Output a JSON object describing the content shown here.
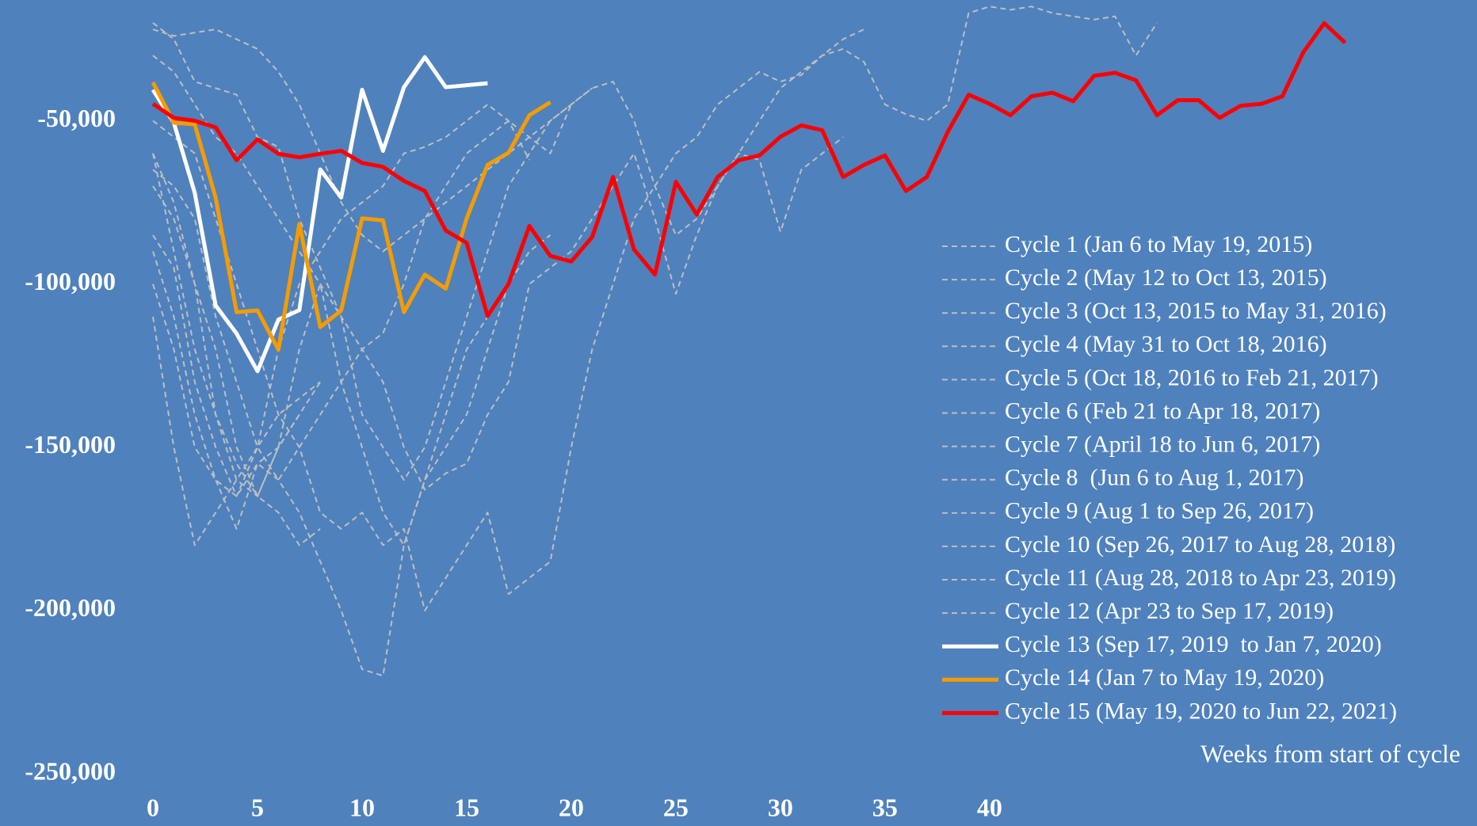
{
  "chart_data": {
    "type": "line",
    "x_label": "Weeks from start of cycle",
    "xlim": [
      0,
      63
    ],
    "xticks": [
      0,
      5,
      10,
      15,
      20,
      25,
      30,
      35,
      40
    ],
    "ylim": [
      -250000,
      -13000
    ],
    "yticks": [
      {
        "value": -50000,
        "label": "-50,000"
      },
      {
        "value": -100000,
        "label": "-100,000"
      },
      {
        "value": -150000,
        "label": "-150,000"
      },
      {
        "value": -200000,
        "label": "-200,000"
      },
      {
        "value": -250000,
        "label": "-250,000"
      }
    ],
    "grid": false,
    "legend": "right",
    "series": [
      {
        "name": "Cycle 1 (Jan 6 to May 19, 2015)",
        "color": "#bfbfbf",
        "style": "dashed",
        "values": [
          -85000,
          -95000,
          -130000,
          -150000,
          -165000,
          -150000,
          -120000,
          -100000,
          -90000,
          -80000,
          -75000,
          -70000,
          -60000,
          -58000,
          -55000,
          -50000,
          -45000,
          -50000,
          -62000
        ]
      },
      {
        "name": "Cycle 2 (May 12 to Oct 13, 2015)",
        "color": "#bfbfbf",
        "style": "dashed",
        "values": [
          -20000,
          -25000,
          -38000,
          -40000,
          -42000,
          -55000,
          -58000,
          -80000,
          -95000,
          -110000,
          -140000,
          -150000,
          -160000,
          -150000,
          -130000,
          -110000,
          -90000,
          -70000,
          -60000,
          -50000,
          -45000,
          -40000
        ]
      },
      {
        "name": "Cycle 3 (Oct 13, 2015 to May 31, 2016)",
        "color": "#bfbfbf",
        "style": "dashed",
        "values": [
          -22000,
          -24000,
          -23000,
          -22000,
          -25000,
          -28000,
          -35000,
          -45000,
          -60000,
          -75000,
          -85000,
          -90000,
          -85000,
          -80000,
          -75000,
          -70000,
          -65000,
          -60000,
          -55000,
          -50000,
          -45000,
          -40000,
          -38000,
          -50000,
          -70000,
          -85000,
          -80000,
          -70000,
          -60000,
          -50000,
          -40000,
          -35000,
          -30000,
          -25000,
          -22000
        ]
      },
      {
        "name": "Cycle 4 (May 31 to Oct 18, 2016)",
        "color": "#bfbfbf",
        "style": "dashed",
        "values": [
          -60000,
          -75000,
          -100000,
          -140000,
          -160000,
          -165000,
          -150000,
          -120000,
          -100000,
          -130000,
          -150000,
          -170000,
          -180000,
          -160000,
          -150000,
          -140000,
          -120000,
          -100000,
          -90000,
          -85000
        ]
      },
      {
        "name": "Cycle 5 (Oct 18, 2016 to Feb 21, 2017)",
        "color": "#bfbfbf",
        "style": "dashed",
        "values": [
          -90000,
          -110000,
          -140000,
          -160000,
          -175000,
          -155000,
          -160000,
          -170000,
          -185000,
          -200000,
          -218000,
          -220000,
          -180000,
          -160000,
          -140000,
          -120000,
          -110000,
          -100000
        ]
      },
      {
        "name": "Cycle 6 (Feb 21 to Apr 18, 2017)",
        "color": "#bfbfbf",
        "style": "dashed",
        "values": [
          -110000,
          -150000,
          -180000,
          -170000,
          -160000,
          -150000,
          -140000,
          -135000,
          -130000
        ]
      },
      {
        "name": "Cycle 7 (April 18 to Jun 6, 2017)",
        "color": "#bfbfbf",
        "style": "dashed",
        "values": [
          -60000,
          -90000,
          -120000,
          -140000,
          -155000,
          -165000,
          -150000,
          -140000
        ]
      },
      {
        "name": "Cycle 8  (Jun 6 to Aug 1, 2017)",
        "color": "#bfbfbf",
        "style": "dashed",
        "values": [
          -70000,
          -80000,
          -100000,
          -120000,
          -150000,
          -165000,
          -170000,
          -180000,
          -175000
        ]
      },
      {
        "name": "Cycle 9 (Aug 1 to Sep 26, 2017)",
        "color": "#bfbfbf",
        "style": "dashed",
        "values": [
          -100000,
          -120000,
          -150000,
          -160000,
          -165000,
          -155000,
          -150000,
          -140000,
          -130000
        ]
      },
      {
        "name": "Cycle 10 (Sep 26, 2017 to Aug 28, 2018)",
        "color": "#bfbfbf",
        "style": "dashed",
        "values": [
          -50000,
          -55000,
          -60000,
          -80000,
          -100000,
          -120000,
          -140000,
          -150000,
          -170000,
          -175000,
          -170000,
          -180000,
          -175000,
          -200000,
          -190000,
          -180000,
          -170000,
          -195000,
          -190000,
          -185000,
          -150000,
          -120000,
          -100000,
          -80000,
          -70000,
          -60000,
          -55000,
          -45000,
          -40000,
          -35000,
          -38000,
          -36000,
          -30000,
          -28000,
          -32000,
          -45000,
          -48000,
          -50000,
          -45000,
          -17000,
          -15000,
          -16000,
          -15000,
          -17000,
          -18000,
          -19000,
          -18000,
          -30000,
          -20000
        ]
      },
      {
        "name": "Cycle 11 (Aug 28, 2018 to Apr 23, 2019)",
        "color": "#bfbfbf",
        "style": "dashed",
        "values": [
          -65000,
          -70000,
          -80000,
          -110000,
          -130000,
          -150000,
          -160000,
          -150000,
          -140000,
          -130000,
          -120000,
          -130000,
          -150000,
          -163000,
          -158000,
          -155000,
          -140000,
          -130000,
          -100000,
          -95000,
          -90000,
          -80000,
          -70000,
          -60000,
          -80000,
          -103000,
          -85000,
          -70000,
          -60000,
          -62000,
          -84000,
          -65000,
          -60000,
          -55000
        ]
      },
      {
        "name": "Cycle 12 (Apr 23 to Sep 17, 2019)",
        "color": "#bfbfbf",
        "style": "dashed",
        "values": [
          -30000,
          -35000,
          -45000,
          -55000,
          -60000,
          -70000,
          -80000,
          -90000,
          -100000,
          -110000,
          -120000,
          -115000,
          -100000,
          -80000,
          -70000,
          -60000,
          -55000,
          -50000,
          -55000,
          -60000,
          -45000
        ]
      },
      {
        "name": "Cycle 13 (Sep 17, 2019  to Jan 7, 2020)",
        "color": "#ffffff",
        "style": "solid",
        "values": [
          -40500,
          -50600,
          -72100,
          -106600,
          -115200,
          -126700,
          -110900,
          -108000,
          -64900,
          -73500,
          -40500,
          -59200,
          -39700,
          -30500,
          -39700,
          -39100,
          -38500
        ]
      },
      {
        "name": "Cycle 14 (Jan 7 to May 19, 2020)",
        "color": "#f59c00",
        "style": "solid",
        "values": [
          -38200,
          -50600,
          -51100,
          -73600,
          -108600,
          -108100,
          -120100,
          -81600,
          -113200,
          -108100,
          -79900,
          -80500,
          -108600,
          -97100,
          -101400,
          -79900,
          -63500,
          -59800,
          -48300,
          -44300
        ]
      },
      {
        "name": "Cycle 15 (May 19, 2020 to Jun 22, 2021)",
        "color": "#ff0000",
        "style": "solid",
        "values": [
          -44800,
          -49100,
          -50000,
          -52000,
          -62100,
          -55700,
          -60100,
          -61200,
          -60100,
          -59200,
          -62900,
          -64100,
          -68400,
          -71500,
          -83600,
          -87400,
          -109800,
          -100000,
          -82200,
          -91400,
          -93100,
          -85600,
          -67200,
          -89400,
          -97100,
          -68700,
          -78700,
          -67200,
          -62100,
          -60600,
          -54900,
          -51400,
          -52900,
          -67200,
          -63500,
          -60600,
          -71500,
          -67200,
          -53400,
          -42000,
          -44800,
          -48300,
          -42500,
          -41400,
          -44000,
          -36200,
          -35300,
          -37600,
          -48300,
          -43700,
          -43700,
          -49100,
          -45400,
          -44800,
          -42500,
          -29000,
          -20100,
          -26100
        ]
      }
    ]
  }
}
